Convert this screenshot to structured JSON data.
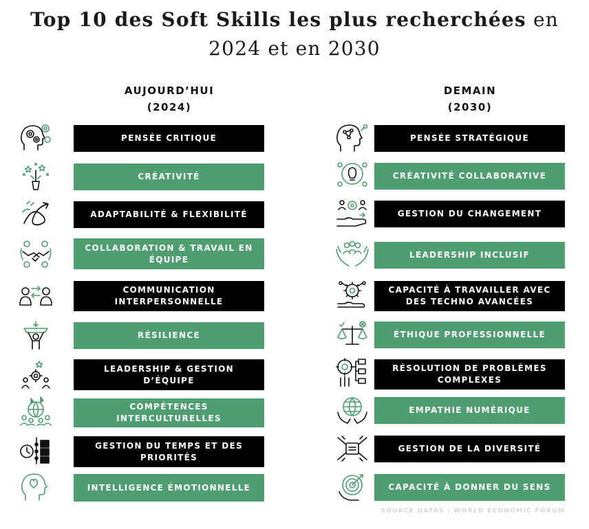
{
  "title": {
    "bold": "Top 10 des Soft Skills les plus recherchées",
    "normal_1": "en",
    "line2": "2024 et en 2030"
  },
  "columns": {
    "left": {
      "heading": "AUJOURD’HUI",
      "year": "(2024)"
    },
    "right": {
      "heading": "DEMAIN",
      "year": "(2030)"
    }
  },
  "left_items": [
    {
      "label": "PENSÉE CRITIQUE",
      "style": "dark",
      "icon": "head-gears-icon"
    },
    {
      "label": "CRÉATIVITÉ",
      "style": "green",
      "icon": "sparkle-stars-icon"
    },
    {
      "label": "ADAPTABILITÉ & FLEXIBILITÉ",
      "style": "dark",
      "icon": "flexible-arrows-icon"
    },
    {
      "label": "COLLABORATION & TRAVAIL EN ÉQUIPE",
      "style": "green",
      "icon": "handshake-team-icon"
    },
    {
      "label": "COMMUNICATION INTERPERSONNELLE",
      "style": "dark",
      "icon": "people-exchange-icon"
    },
    {
      "label": "RÉSILIENCE",
      "style": "green",
      "icon": "person-lifting-icon"
    },
    {
      "label": "LEADERSHIP & GESTION D’ÉQUIPE",
      "style": "dark",
      "icon": "leader-star-icon"
    },
    {
      "label": "COMPÉTENCES INTERCULTURELLES",
      "style": "green",
      "icon": "globe-people-icon"
    },
    {
      "label": "GESTION DU TEMPS ET DES PRIORITÉS",
      "style": "dark",
      "icon": "clock-checklist-icon"
    },
    {
      "label": "INTELLIGENCE ÉMOTIONNELLE",
      "style": "green",
      "icon": "head-heart-icon"
    }
  ],
  "right_items": [
    {
      "label": "PENSÉE STRATÉGIQUE",
      "style": "dark",
      "icon": "head-network-icon"
    },
    {
      "label": "CRÉATIVITÉ COLLABORATIVE",
      "style": "green",
      "icon": "lightbulb-team-icon"
    },
    {
      "label": "GESTION DU CHANGEMENT",
      "style": "dark",
      "icon": "hand-gear-people-icon"
    },
    {
      "label": "LEADERSHIP INCLUSIF",
      "style": "green",
      "icon": "hands-group-icon"
    },
    {
      "label": "CAPACITÉ À TRAVAILLER AVEC DES TECHNO AVANCÉES",
      "style": "dark",
      "icon": "hand-tech-gear-icon"
    },
    {
      "label": "ÉTHIQUE PROFESSIONNELLE",
      "style": "green",
      "icon": "balance-scale-icon"
    },
    {
      "label": "RÉSOLUTION DE PROBLÈMES COMPLEXES",
      "style": "dark",
      "icon": "problem-solving-icon"
    },
    {
      "label": "EMPATHIE NUMÉRIQUE",
      "style": "green",
      "icon": "globe-hands-icon"
    },
    {
      "label": "GESTION DE LA DIVERSITÉ",
      "style": "dark",
      "icon": "joined-hands-icon"
    },
    {
      "label": "CAPACITÉ À DONNER DU SENS",
      "style": "green",
      "icon": "target-hand-icon"
    }
  ],
  "source": "SOURCE DATAS : WORLD ECONOMIC FORUM",
  "colors": {
    "dark": "#000000",
    "green": "#4f9e71",
    "icon_green": "#4f9e71",
    "icon_dark": "#111111"
  }
}
